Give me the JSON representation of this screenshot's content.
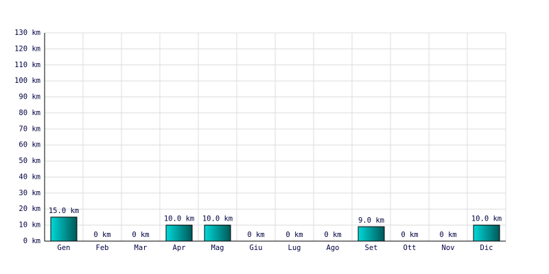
{
  "chart_data": {
    "type": "bar",
    "categories": [
      "Gen",
      "Feb",
      "Mar",
      "Apr",
      "Mag",
      "Giu",
      "Lug",
      "Ago",
      "Set",
      "Ott",
      "Nov",
      "Dic"
    ],
    "values": [
      15,
      0,
      0,
      10,
      10,
      0,
      0,
      0,
      9,
      0,
      0,
      10
    ],
    "value_labels": [
      "15.0 km",
      "0 km",
      "0 km",
      "10.0 km",
      "10.0 km",
      "0 km",
      "0 km",
      "0 km",
      "9.0 km",
      "0 km",
      "0 km",
      "10.0 km"
    ],
    "color": "#00d8d8",
    "ylim": [
      0,
      130
    ],
    "yticks": [
      {
        "value": 0,
        "label": "0 km"
      },
      {
        "value": 10,
        "label": "10 km"
      },
      {
        "value": 20,
        "label": "20 km"
      },
      {
        "value": 30,
        "label": "30 km"
      },
      {
        "value": 40,
        "label": "40 km"
      },
      {
        "value": 50,
        "label": "50 km"
      },
      {
        "value": 60,
        "label": "60 km"
      },
      {
        "value": 70,
        "label": "70 km"
      },
      {
        "value": 80,
        "label": "80 km"
      },
      {
        "value": 90,
        "label": "90 km"
      },
      {
        "value": 100,
        "label": "100 km"
      },
      {
        "value": 110,
        "label": "110 km"
      },
      {
        "value": 120,
        "label": "120 km"
      },
      {
        "value": 130,
        "label": "130 km"
      }
    ],
    "grid": true
  }
}
